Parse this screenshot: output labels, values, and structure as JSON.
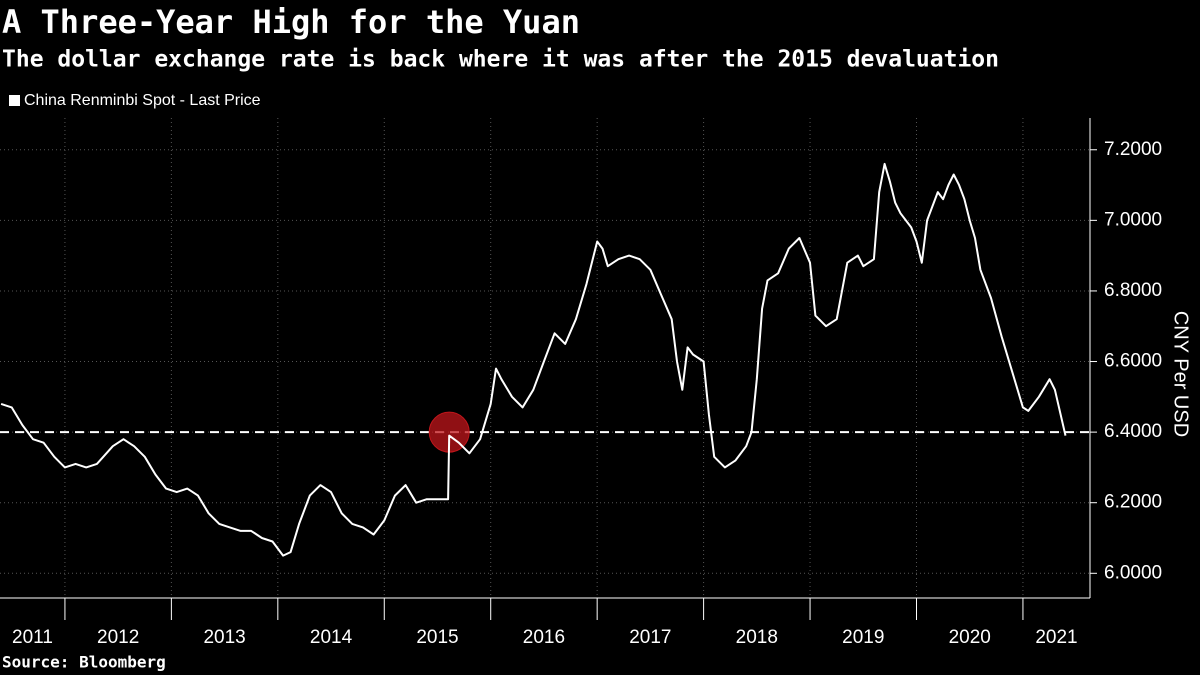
{
  "chart_data": {
    "type": "line",
    "title": "A Three-Year High for the Yuan",
    "subtitle": "The dollar exchange rate is back where it was after the 2015 devaluation",
    "y_label": "CNY Per USD",
    "source": "Source: Bloomberg",
    "x": [
      2011.4,
      2011.5,
      2011.6,
      2011.7,
      2011.8,
      2011.9,
      2012.0,
      2012.1,
      2012.2,
      2012.3,
      2012.45,
      2012.55,
      2012.65,
      2012.75,
      2012.85,
      2012.95,
      2013.05,
      2013.15,
      2013.25,
      2013.35,
      2013.45,
      2013.55,
      2013.65,
      2013.75,
      2013.85,
      2013.95,
      2014.05,
      2014.12,
      2014.2,
      2014.3,
      2014.4,
      2014.5,
      2014.6,
      2014.7,
      2014.8,
      2014.9,
      2015.0,
      2015.1,
      2015.2,
      2015.3,
      2015.4,
      2015.5,
      2015.6,
      2015.61,
      2015.7,
      2015.8,
      2015.9,
      2016.0,
      2016.05,
      2016.1,
      2016.2,
      2016.3,
      2016.4,
      2016.5,
      2016.6,
      2016.7,
      2016.8,
      2016.9,
      2017.0,
      2017.05,
      2017.1,
      2017.2,
      2017.3,
      2017.4,
      2017.5,
      2017.6,
      2017.7,
      2017.75,
      2017.8,
      2017.85,
      2017.9,
      2018.0,
      2018.05,
      2018.1,
      2018.2,
      2018.3,
      2018.4,
      2018.45,
      2018.5,
      2018.55,
      2018.6,
      2018.7,
      2018.8,
      2018.9,
      2019.0,
      2019.05,
      2019.15,
      2019.25,
      2019.35,
      2019.45,
      2019.5,
      2019.6,
      2019.65,
      2019.7,
      2019.75,
      2019.8,
      2019.85,
      2019.95,
      2020.0,
      2020.05,
      2020.1,
      2020.2,
      2020.25,
      2020.3,
      2020.35,
      2020.4,
      2020.45,
      2020.5,
      2020.55,
      2020.6,
      2020.7,
      2020.8,
      2020.9,
      2021.0,
      2021.05,
      2021.15,
      2021.25,
      2021.3,
      2021.4
    ],
    "series": [
      {
        "name": "China Renminbi Spot - Last Price",
        "color": "#ffffff",
        "values": [
          6.48,
          6.47,
          6.42,
          6.38,
          6.37,
          6.33,
          6.3,
          6.31,
          6.3,
          6.31,
          6.36,
          6.38,
          6.36,
          6.33,
          6.28,
          6.24,
          6.23,
          6.24,
          6.22,
          6.17,
          6.14,
          6.13,
          6.12,
          6.12,
          6.1,
          6.09,
          6.05,
          6.06,
          6.14,
          6.22,
          6.25,
          6.23,
          6.17,
          6.14,
          6.13,
          6.11,
          6.15,
          6.22,
          6.25,
          6.2,
          6.21,
          6.21,
          6.21,
          6.39,
          6.37,
          6.34,
          6.38,
          6.48,
          6.58,
          6.55,
          6.5,
          6.47,
          6.52,
          6.6,
          6.68,
          6.65,
          6.72,
          6.82,
          6.94,
          6.92,
          6.87,
          6.89,
          6.9,
          6.89,
          6.86,
          6.79,
          6.72,
          6.6,
          6.52,
          6.64,
          6.62,
          6.6,
          6.45,
          6.33,
          6.3,
          6.32,
          6.36,
          6.4,
          6.55,
          6.75,
          6.83,
          6.85,
          6.92,
          6.95,
          6.88,
          6.73,
          6.7,
          6.72,
          6.88,
          6.9,
          6.87,
          6.89,
          7.08,
          7.16,
          7.11,
          7.05,
          7.02,
          6.98,
          6.94,
          6.88,
          7.0,
          7.08,
          7.06,
          7.1,
          7.13,
          7.1,
          7.06,
          7.0,
          6.95,
          6.86,
          6.78,
          6.67,
          6.57,
          6.47,
          6.46,
          6.5,
          6.55,
          6.52,
          6.39
        ]
      }
    ],
    "xlim": [
      2011.39,
      2021.63
    ],
    "xticks": [
      2011,
      2012,
      2013,
      2014,
      2015,
      2016,
      2017,
      2018,
      2019,
      2020,
      2021
    ],
    "ylim": [
      5.93,
      7.29
    ],
    "yticks": [
      {
        "value": 6.0,
        "label": "6.0000"
      },
      {
        "value": 6.2,
        "label": "6.2000"
      },
      {
        "value": 6.4,
        "label": "6.4000"
      },
      {
        "value": 6.6,
        "label": "6.6000"
      },
      {
        "value": 6.8,
        "label": "6.8000"
      },
      {
        "value": 7.0,
        "label": "7.0000"
      },
      {
        "value": 7.2,
        "label": "7.2000"
      }
    ],
    "grid": true,
    "reference_y": 6.4,
    "highlight": {
      "x": 2015.61,
      "y": 6.4,
      "color": "#c0161b"
    }
  }
}
